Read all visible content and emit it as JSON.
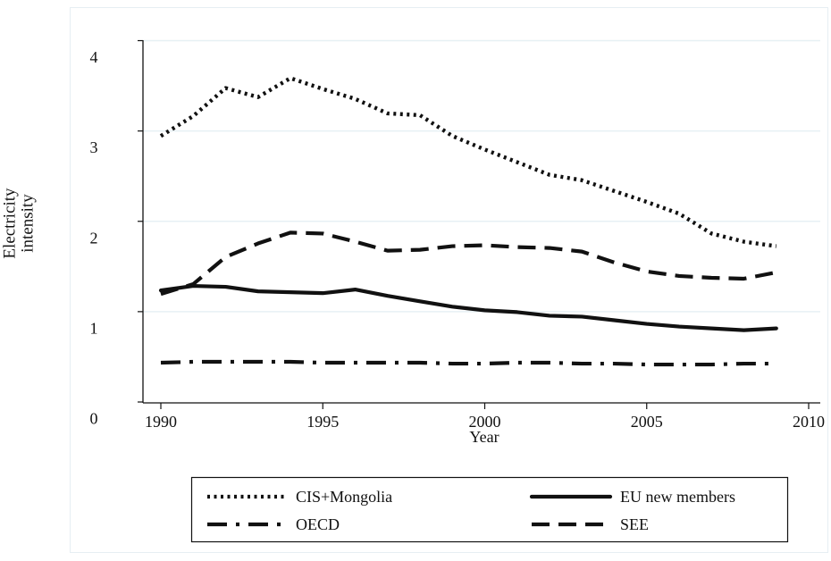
{
  "chart_data": {
    "type": "line",
    "ylabel": [
      "Electricity",
      "intensity"
    ],
    "xlabel": "Year",
    "x": [
      1990,
      1991,
      1992,
      1993,
      1994,
      1995,
      1996,
      1997,
      1998,
      1999,
      2000,
      2001,
      2002,
      2003,
      2004,
      2005,
      2006,
      2007,
      2008,
      2009
    ],
    "xlim": [
      1990,
      2010
    ],
    "ylim": [
      0,
      4
    ],
    "xticks": [
      "1990",
      "1995",
      "2000",
      "2005",
      "2010"
    ],
    "yticks": [
      "0",
      "1",
      "2",
      "3",
      "4"
    ],
    "series": [
      {
        "name": "CIS+Mongolia",
        "line_style": "dotted",
        "color": "#111111",
        "values": [
          2.93,
          3.15,
          3.46,
          3.36,
          3.57,
          3.45,
          3.34,
          3.18,
          3.16,
          2.93,
          2.78,
          2.64,
          2.5,
          2.44,
          2.32,
          2.2,
          2.07,
          1.85,
          1.76,
          1.71
        ]
      },
      {
        "name": "EU new members",
        "line_style": "solid",
        "color": "#111111",
        "values": [
          1.22,
          1.27,
          1.26,
          1.21,
          1.2,
          1.19,
          1.23,
          1.16,
          1.1,
          1.04,
          1.0,
          0.98,
          0.94,
          0.93,
          0.89,
          0.85,
          0.82,
          0.8,
          0.78,
          0.8
        ]
      },
      {
        "name": "OECD",
        "line_style": "dash-dot",
        "color": "#111111",
        "values": [
          0.42,
          0.43,
          0.43,
          0.43,
          0.43,
          0.42,
          0.42,
          0.42,
          0.42,
          0.41,
          0.41,
          0.42,
          0.42,
          0.41,
          0.41,
          0.4,
          0.4,
          0.4,
          0.41,
          0.41
        ]
      },
      {
        "name": "SEE",
        "line_style": "dashed",
        "color": "#111111",
        "values": [
          1.18,
          1.29,
          1.59,
          1.74,
          1.86,
          1.85,
          1.76,
          1.66,
          1.67,
          1.71,
          1.72,
          1.7,
          1.69,
          1.65,
          1.53,
          1.43,
          1.38,
          1.36,
          1.35,
          1.42
        ]
      }
    ],
    "grid": true,
    "legend_position": "bottom"
  }
}
